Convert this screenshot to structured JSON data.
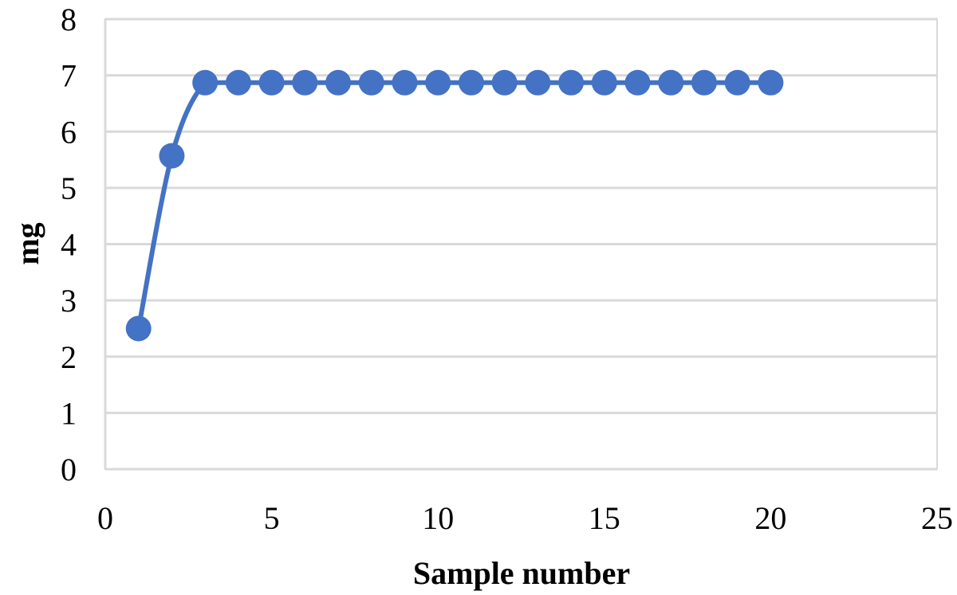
{
  "chart_data": {
    "type": "scatter",
    "title": "",
    "xlabel": "Sample number",
    "ylabel": "mg",
    "xlim": [
      0,
      25
    ],
    "ylim": [
      0,
      8
    ],
    "x_ticks": [
      0,
      5,
      10,
      15,
      20,
      25
    ],
    "y_ticks": [
      0,
      1,
      2,
      3,
      4,
      5,
      6,
      7,
      8
    ],
    "grid": "horizontal",
    "legend": "none",
    "line_style": "smoothed",
    "series": [
      {
        "color": "#4472c4",
        "x": [
          1,
          2,
          3,
          4,
          5,
          6,
          7,
          8,
          9,
          10,
          11,
          12,
          13,
          14,
          15,
          16,
          17,
          18,
          19,
          20
        ],
        "y": [
          2.5,
          5.57,
          6.87,
          6.87,
          6.87,
          6.87,
          6.87,
          6.87,
          6.87,
          6.87,
          6.87,
          6.87,
          6.87,
          6.87,
          6.87,
          6.87,
          6.87,
          6.87,
          6.87,
          6.87
        ]
      }
    ]
  }
}
